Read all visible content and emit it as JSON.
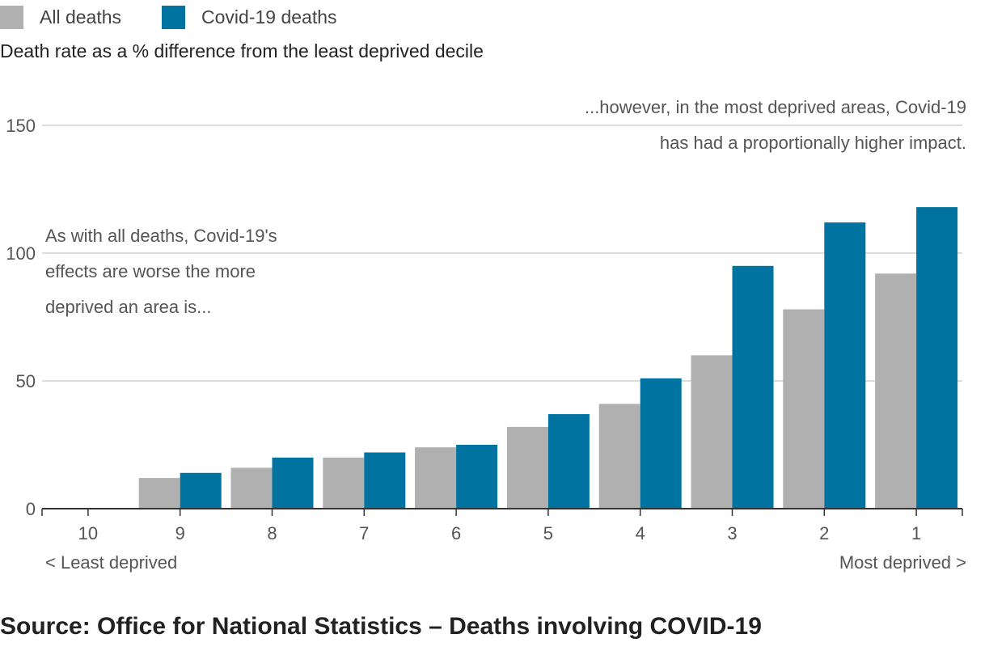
{
  "legend": {
    "items": [
      {
        "label": "All deaths",
        "color": "#b0b0b0"
      },
      {
        "label": "Covid-19 deaths",
        "color": "#0073a1"
      }
    ]
  },
  "subtitle": "Death rate as a % difference from the least deprived decile",
  "annotations": {
    "left": [
      "As with all deaths, Covid-19's",
      "effects are worse the more",
      "deprived an area is..."
    ],
    "right": [
      "...however, in the most deprived areas, Covid-19",
      "has had a proportionally higher impact."
    ]
  },
  "axis_notes": {
    "left": "< Least deprived",
    "right": "Most deprived >"
  },
  "source": "Source: Office for National Statistics – Deaths involving COVID-19",
  "chart_data": {
    "type": "bar",
    "categories": [
      "10",
      "9",
      "8",
      "7",
      "6",
      "5",
      "4",
      "3",
      "2",
      "1"
    ],
    "series": [
      {
        "name": "All deaths",
        "color": "#b0b0b0",
        "values": [
          0,
          12,
          16,
          20,
          24,
          32,
          41,
          60,
          78,
          92
        ]
      },
      {
        "name": "Covid-19 deaths",
        "color": "#0073a1",
        "values": [
          0,
          14,
          20,
          22,
          25,
          37,
          51,
          95,
          112,
          118
        ]
      }
    ],
    "ylim": [
      0,
      150
    ],
    "yticks": [
      0,
      50,
      100,
      150
    ],
    "grid": true
  }
}
